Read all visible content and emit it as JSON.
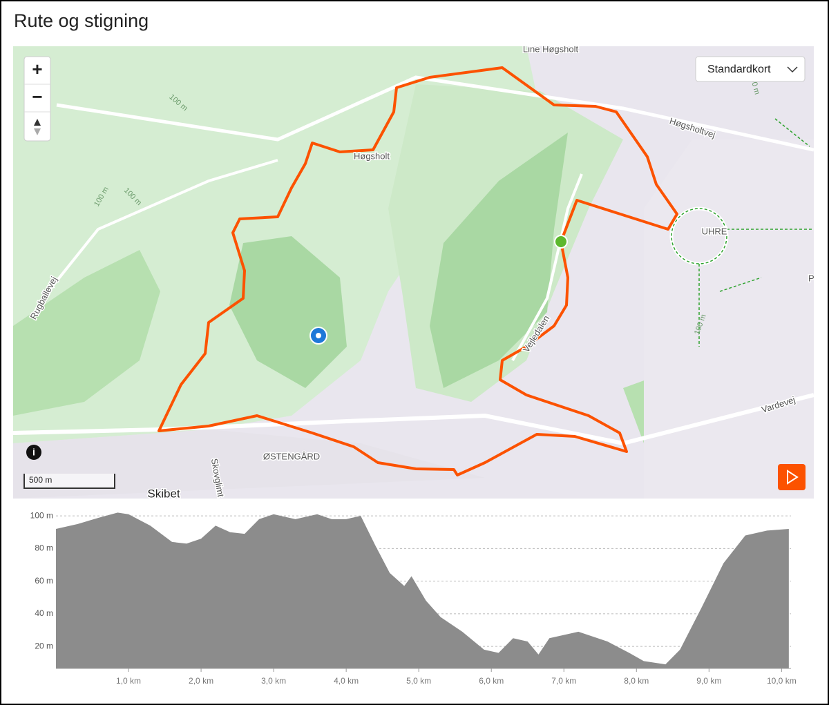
{
  "header": {
    "title": "Rute og stigning"
  },
  "map": {
    "zoom_in": "+",
    "zoom_out": "−",
    "layer_button": "Standardkort",
    "scale": "500 m",
    "labels": [
      "Line Høgsholt",
      "Høgsholt",
      "Høgsholtvej",
      "UHRE",
      "Vejledalen",
      "Vardevej",
      "Rugballevej",
      "ØSTENGÅRD",
      "Skibet",
      "Skovglimt",
      "100 m",
      "100 m",
      "100 m",
      "100 m",
      "100 m",
      "Plu"
    ]
  },
  "chart_data": {
    "type": "area",
    "x": [
      0,
      0.3,
      0.6,
      0.85,
      1.0,
      1.3,
      1.6,
      1.8,
      2.0,
      2.2,
      2.4,
      2.6,
      2.8,
      3.0,
      3.3,
      3.6,
      3.8,
      4.0,
      4.2,
      4.4,
      4.6,
      4.8,
      4.9,
      5.1,
      5.3,
      5.6,
      5.9,
      6.1,
      6.3,
      6.5,
      6.65,
      6.8,
      7.2,
      7.6,
      7.9,
      8.1,
      8.4,
      8.6,
      8.9,
      9.2,
      9.5,
      9.8,
      10.1
    ],
    "values": [
      92,
      95,
      99,
      102,
      101,
      94,
      84,
      83,
      86,
      94,
      90,
      89,
      98,
      101,
      98,
      101,
      98,
      98,
      100,
      82,
      65,
      57,
      63,
      48,
      38,
      29,
      18,
      16,
      25,
      23,
      15,
      25,
      29,
      23,
      16,
      11,
      9,
      18,
      44,
      71,
      88,
      91,
      92
    ],
    "color": "#8c8c8c",
    "xlim": [
      0,
      10.13
    ],
    "ylim": [
      6.5,
      103
    ],
    "xticks": [
      {
        "value": 1,
        "label": "1,0 km"
      },
      {
        "value": 2,
        "label": "2,0 km"
      },
      {
        "value": 3,
        "label": "3,0 km"
      },
      {
        "value": 4,
        "label": "4,0 km"
      },
      {
        "value": 5,
        "label": "5,0 km"
      },
      {
        "value": 6,
        "label": "6,0 km"
      },
      {
        "value": 7,
        "label": "7,0 km"
      },
      {
        "value": 8,
        "label": "8,0 km"
      },
      {
        "value": 9,
        "label": "9,0 km"
      },
      {
        "value": 10,
        "label": "10,0 km"
      }
    ],
    "yticks": [
      {
        "value": 20,
        "label": "20 m"
      },
      {
        "value": 40,
        "label": "40 m"
      },
      {
        "value": 60,
        "label": "60 m"
      },
      {
        "value": 80,
        "label": "80 m"
      },
      {
        "value": 100,
        "label": "100 m"
      }
    ],
    "grid": true
  }
}
